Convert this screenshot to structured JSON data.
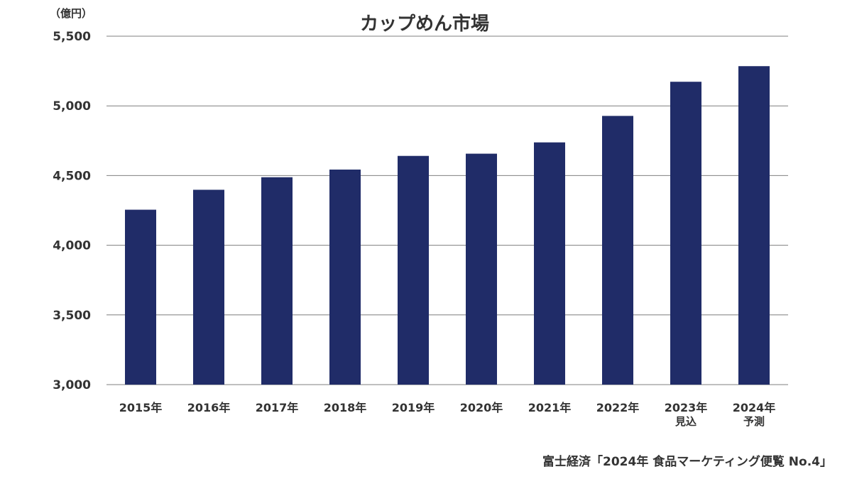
{
  "chart_data": {
    "type": "bar",
    "title": "カップめん市場",
    "unit_label": "（億円）",
    "categories": [
      "2015年",
      "2016年",
      "2017年",
      "2018年",
      "2019年",
      "2020年",
      "2021年",
      "2022年",
      "2023年",
      "2024年"
    ],
    "category_sublabels": [
      "",
      "",
      "",
      "",
      "",
      "",
      "",
      "",
      "見込",
      "予測"
    ],
    "values": [
      4255,
      4398,
      4488,
      4543,
      4641,
      4657,
      4738,
      4928,
      5173,
      5285
    ],
    "ylim": [
      3000,
      5500
    ],
    "yticks": [
      "3,000",
      "3,500",
      "4,000",
      "4,500",
      "5,000",
      "5,500"
    ],
    "ytick_values": [
      3000,
      3500,
      4000,
      4500,
      5000,
      5500
    ],
    "bar_color": "#202c68",
    "grid": true,
    "legend": "none"
  },
  "source": "富士経済「2024年 食品マーケティング便覧 No.4」"
}
